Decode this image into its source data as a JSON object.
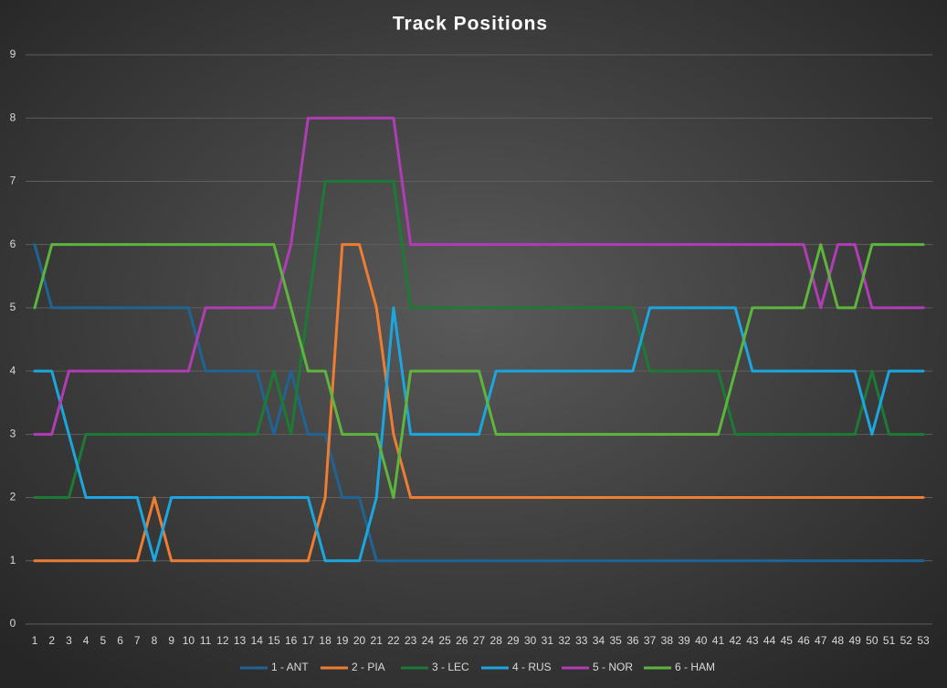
{
  "chart_data": {
    "type": "line",
    "title": "Track Positions",
    "categories": [
      1,
      2,
      3,
      4,
      5,
      6,
      7,
      8,
      9,
      10,
      11,
      12,
      13,
      14,
      15,
      16,
      17,
      18,
      19,
      20,
      21,
      22,
      23,
      24,
      25,
      26,
      27,
      28,
      29,
      30,
      31,
      32,
      33,
      34,
      35,
      36,
      37,
      38,
      39,
      40,
      41,
      42,
      43,
      44,
      45,
      46,
      47,
      48,
      49,
      50,
      51,
      52,
      53
    ],
    "series": [
      {
        "name": "1 - ANT",
        "color": "#1f6494",
        "values": [
          6,
          5,
          5,
          5,
          5,
          5,
          5,
          5,
          5,
          5,
          4,
          4,
          4,
          4,
          3,
          4,
          3,
          3,
          2,
          2,
          1,
          1,
          1,
          1,
          1,
          1,
          1,
          1,
          1,
          1,
          1,
          1,
          1,
          1,
          1,
          1,
          1,
          1,
          1,
          1,
          1,
          1,
          1,
          1,
          1,
          1,
          1,
          1,
          1,
          1,
          1,
          1,
          1
        ]
      },
      {
        "name": "2 - PIA",
        "color": "#ef7d31",
        "values": [
          1,
          1,
          1,
          1,
          1,
          1,
          1,
          2,
          1,
          1,
          1,
          1,
          1,
          1,
          1,
          1,
          1,
          2,
          6,
          6,
          5,
          3,
          2,
          2,
          2,
          2,
          2,
          2,
          2,
          2,
          2,
          2,
          2,
          2,
          2,
          2,
          2,
          2,
          2,
          2,
          2,
          2,
          2,
          2,
          2,
          2,
          2,
          2,
          2,
          2,
          2,
          2,
          2
        ]
      },
      {
        "name": "3 - LEC",
        "color": "#1d7a34",
        "values": [
          2,
          2,
          2,
          3,
          3,
          3,
          3,
          3,
          3,
          3,
          3,
          3,
          3,
          3,
          4,
          3,
          5,
          7,
          7,
          7,
          7,
          7,
          5,
          5,
          5,
          5,
          5,
          5,
          5,
          5,
          5,
          5,
          5,
          5,
          5,
          5,
          4,
          4,
          4,
          4,
          4,
          3,
          3,
          3,
          3,
          3,
          3,
          3,
          3,
          4,
          3,
          3,
          3
        ]
      },
      {
        "name": "4 - RUS",
        "color": "#1ba6df",
        "values": [
          4,
          4,
          3,
          2,
          2,
          2,
          2,
          1,
          2,
          2,
          2,
          2,
          2,
          2,
          2,
          2,
          2,
          1,
          1,
          1,
          2,
          5,
          3,
          3,
          3,
          3,
          3,
          4,
          4,
          4,
          4,
          4,
          4,
          4,
          4,
          4,
          5,
          5,
          5,
          5,
          5,
          5,
          4,
          4,
          4,
          4,
          4,
          4,
          4,
          3,
          4,
          4,
          4
        ]
      },
      {
        "name": "5 - NOR",
        "color": "#b03db5",
        "values": [
          3,
          3,
          4,
          4,
          4,
          4,
          4,
          4,
          4,
          4,
          5,
          5,
          5,
          5,
          5,
          6,
          8,
          8,
          8,
          8,
          8,
          8,
          6,
          6,
          6,
          6,
          6,
          6,
          6,
          6,
          6,
          6,
          6,
          6,
          6,
          6,
          6,
          6,
          6,
          6,
          6,
          6,
          6,
          6,
          6,
          6,
          5,
          6,
          6,
          5,
          5,
          5,
          5
        ]
      },
      {
        "name": "6 - HAM",
        "color": "#5eb53e",
        "values": [
          5,
          6,
          6,
          6,
          6,
          6,
          6,
          6,
          6,
          6,
          6,
          6,
          6,
          6,
          6,
          5,
          4,
          4,
          3,
          3,
          3,
          2,
          4,
          4,
          4,
          4,
          4,
          3,
          3,
          3,
          3,
          3,
          3,
          3,
          3,
          3,
          3,
          3,
          3,
          3,
          3,
          4,
          5,
          5,
          5,
          5,
          6,
          5,
          5,
          6,
          6,
          6,
          6
        ]
      }
    ],
    "ylim": [
      0,
      9
    ],
    "yticks": [
      0,
      1,
      2,
      3,
      4,
      5,
      6,
      7,
      8,
      9
    ],
    "grid": true,
    "legend": "bottom"
  }
}
